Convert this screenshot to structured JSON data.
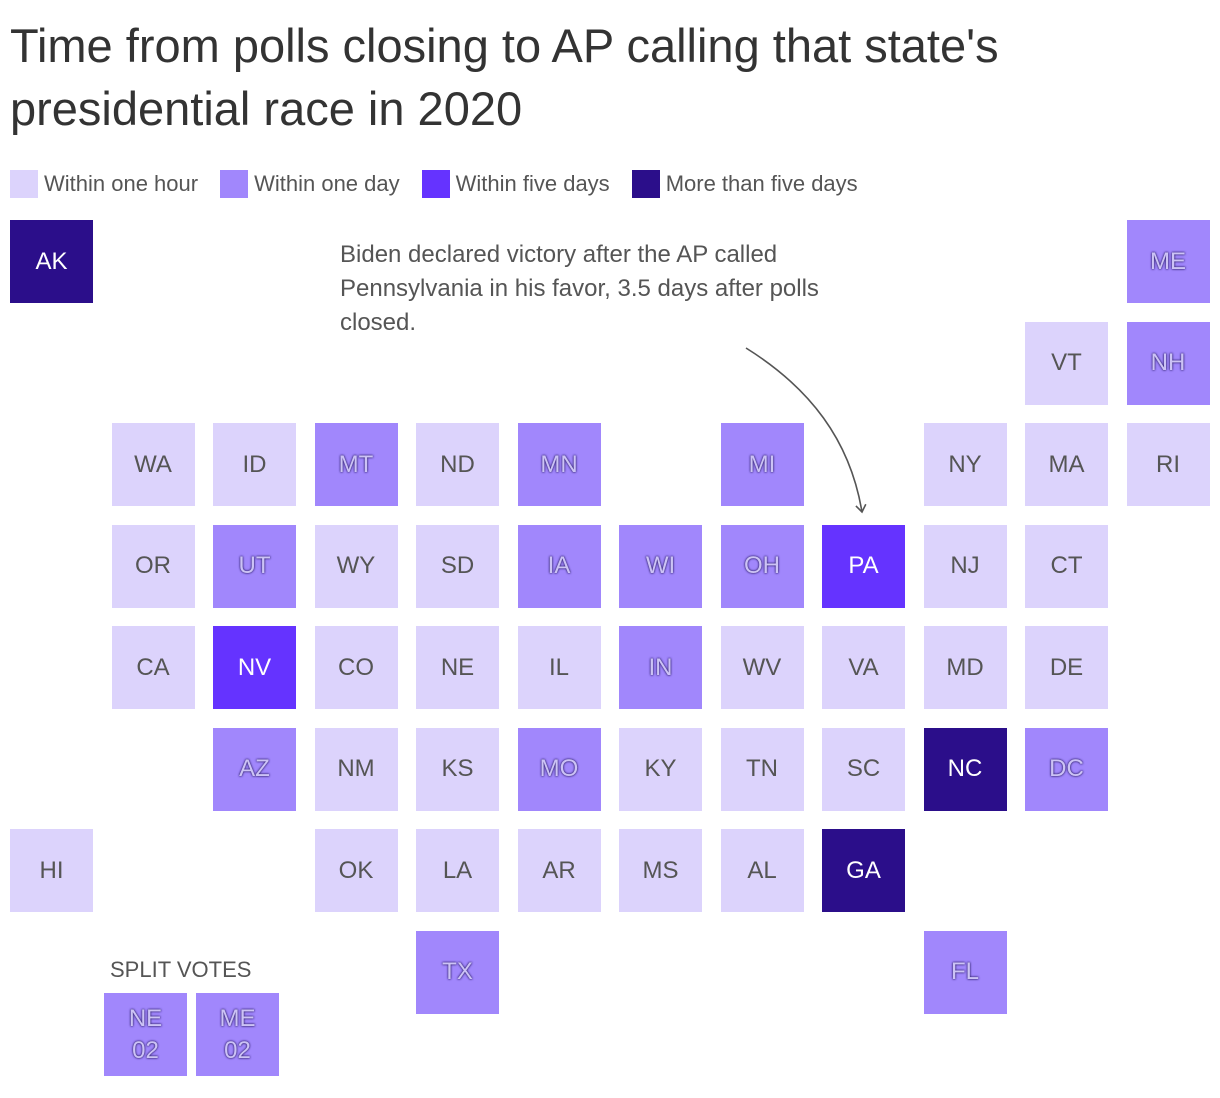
{
  "title": "Time from polls closing to AP calling that state's presidential race in 2020",
  "legend": [
    {
      "label": "Within one hour",
      "color": "#dcd3fc"
    },
    {
      "label": "Within one day",
      "color": "#a187fc"
    },
    {
      "label": "Within five days",
      "color": "#6533ff"
    },
    {
      "label": "More than five days",
      "color": "#2b0e8a"
    }
  ],
  "annotation": "Biden declared victory after the AP called Pennsylvania in his favor, 3.5 days after polls closed.",
  "split_votes_label": "SPLIT VOTES",
  "chart_data": {
    "type": "tile-grid-map",
    "categories": [
      "Within one hour",
      "Within one day",
      "Within five days",
      "More than five days"
    ],
    "states": [
      {
        "state": "AK",
        "category": "More than five days"
      },
      {
        "state": "ME",
        "category": "Within one day"
      },
      {
        "state": "VT",
        "category": "Within one hour"
      },
      {
        "state": "NH",
        "category": "Within one day"
      },
      {
        "state": "WA",
        "category": "Within one hour"
      },
      {
        "state": "ID",
        "category": "Within one hour"
      },
      {
        "state": "MT",
        "category": "Within one day"
      },
      {
        "state": "ND",
        "category": "Within one hour"
      },
      {
        "state": "MN",
        "category": "Within one day"
      },
      {
        "state": "MI",
        "category": "Within one day"
      },
      {
        "state": "NY",
        "category": "Within one hour"
      },
      {
        "state": "MA",
        "category": "Within one hour"
      },
      {
        "state": "RI",
        "category": "Within one hour"
      },
      {
        "state": "OR",
        "category": "Within one hour"
      },
      {
        "state": "UT",
        "category": "Within one day"
      },
      {
        "state": "WY",
        "category": "Within one hour"
      },
      {
        "state": "SD",
        "category": "Within one hour"
      },
      {
        "state": "IA",
        "category": "Within one day"
      },
      {
        "state": "WI",
        "category": "Within one day"
      },
      {
        "state": "OH",
        "category": "Within one day"
      },
      {
        "state": "PA",
        "category": "Within five days"
      },
      {
        "state": "NJ",
        "category": "Within one hour"
      },
      {
        "state": "CT",
        "category": "Within one hour"
      },
      {
        "state": "CA",
        "category": "Within one hour"
      },
      {
        "state": "NV",
        "category": "Within five days"
      },
      {
        "state": "CO",
        "category": "Within one hour"
      },
      {
        "state": "NE",
        "category": "Within one hour"
      },
      {
        "state": "IL",
        "category": "Within one hour"
      },
      {
        "state": "IN",
        "category": "Within one day"
      },
      {
        "state": "WV",
        "category": "Within one hour"
      },
      {
        "state": "VA",
        "category": "Within one hour"
      },
      {
        "state": "MD",
        "category": "Within one hour"
      },
      {
        "state": "DE",
        "category": "Within one hour"
      },
      {
        "state": "AZ",
        "category": "Within one day"
      },
      {
        "state": "NM",
        "category": "Within one hour"
      },
      {
        "state": "KS",
        "category": "Within one hour"
      },
      {
        "state": "MO",
        "category": "Within one day"
      },
      {
        "state": "KY",
        "category": "Within one hour"
      },
      {
        "state": "TN",
        "category": "Within one hour"
      },
      {
        "state": "SC",
        "category": "Within one hour"
      },
      {
        "state": "NC",
        "category": "More than five days"
      },
      {
        "state": "DC",
        "category": "Within one day"
      },
      {
        "state": "HI",
        "category": "Within one hour"
      },
      {
        "state": "OK",
        "category": "Within one hour"
      },
      {
        "state": "LA",
        "category": "Within one hour"
      },
      {
        "state": "AR",
        "category": "Within one hour"
      },
      {
        "state": "MS",
        "category": "Within one hour"
      },
      {
        "state": "AL",
        "category": "Within one hour"
      },
      {
        "state": "GA",
        "category": "More than five days"
      },
      {
        "state": "TX",
        "category": "Within one day"
      },
      {
        "state": "FL",
        "category": "Within one day"
      }
    ],
    "split_votes": [
      {
        "state": "NE\n02",
        "category": "Within one day"
      },
      {
        "state": "ME\n02",
        "category": "Within one day"
      }
    ]
  }
}
